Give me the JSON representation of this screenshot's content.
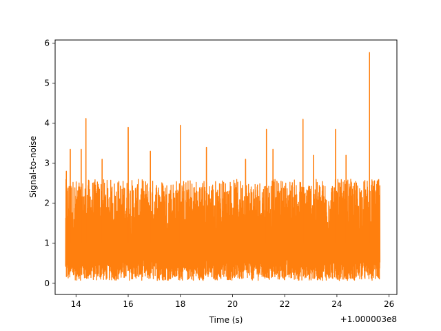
{
  "chart_data": {
    "type": "line",
    "xlabel": "Time (s)",
    "ylabel": "Signal-to-noise",
    "offset_label": "+1.000003e8",
    "xlim": [
      13.2,
      26.3
    ],
    "ylim": [
      -0.28,
      6.08
    ],
    "x_ticks": [
      14,
      16,
      18,
      20,
      22,
      24,
      26
    ],
    "y_ticks": [
      0,
      1,
      2,
      3,
      4,
      5,
      6
    ],
    "x_tick_labels": [
      "14",
      "16",
      "18",
      "20",
      "22",
      "24",
      "26"
    ],
    "y_tick_labels": [
      "0",
      "1",
      "2",
      "3",
      "4",
      "5",
      "6"
    ],
    "grid": false,
    "series": [
      {
        "color": "#ff7f0e",
        "x_range": [
          13.6,
          25.65
        ],
        "typical_range": [
          0.15,
          2.6
        ],
        "peaks": [
          {
            "x": 13.63,
            "y": 2.8
          },
          {
            "x": 13.78,
            "y": 3.35
          },
          {
            "x": 14.2,
            "y": 3.35
          },
          {
            "x": 14.38,
            "y": 4.12
          },
          {
            "x": 15.0,
            "y": 3.1
          },
          {
            "x": 16.0,
            "y": 3.9
          },
          {
            "x": 16.85,
            "y": 3.3
          },
          {
            "x": 18.0,
            "y": 3.95
          },
          {
            "x": 19.0,
            "y": 3.4
          },
          {
            "x": 20.5,
            "y": 3.1
          },
          {
            "x": 21.3,
            "y": 3.85
          },
          {
            "x": 21.55,
            "y": 3.35
          },
          {
            "x": 22.7,
            "y": 4.1
          },
          {
            "x": 23.1,
            "y": 3.2
          },
          {
            "x": 23.95,
            "y": 3.85
          },
          {
            "x": 24.35,
            "y": 3.2
          },
          {
            "x": 25.25,
            "y": 5.77
          }
        ]
      }
    ]
  }
}
